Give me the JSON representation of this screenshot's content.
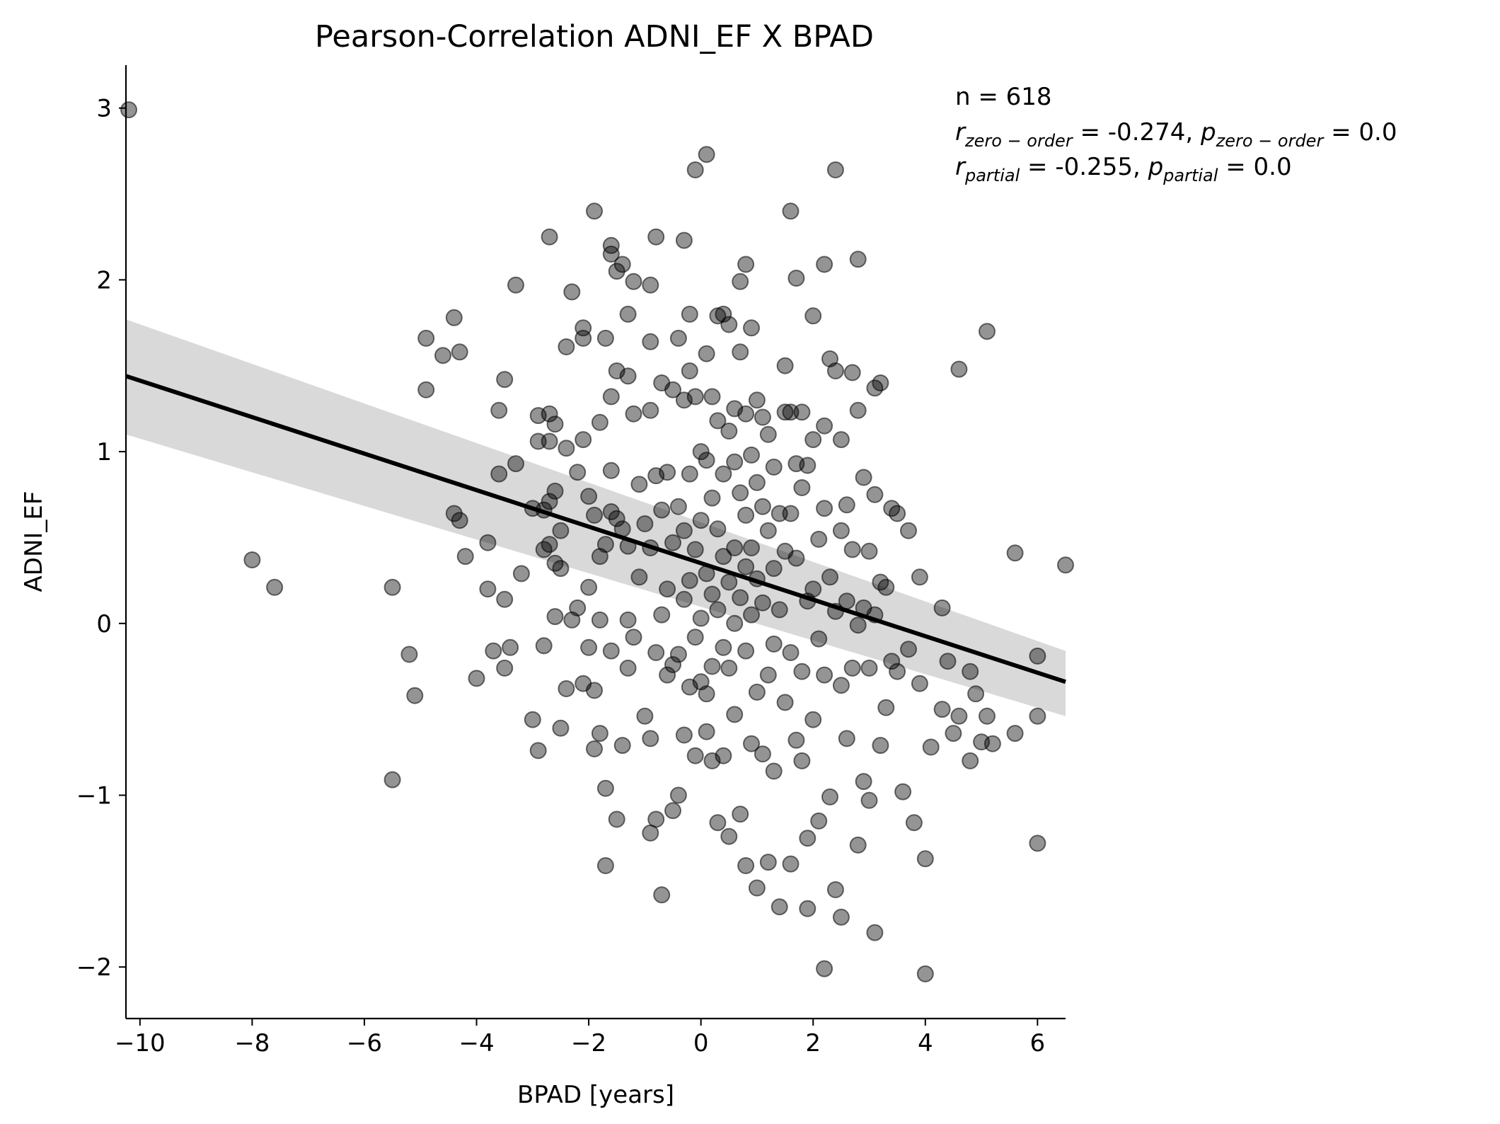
{
  "chart_data": {
    "type": "scatter",
    "title": "Pearson-Correlation ADNI_EF X BPAD",
    "xlabel": "BPAD [years]",
    "ylabel": "ADNI_EF",
    "xlim": [
      -10.25,
      6.5
    ],
    "ylim": [
      -2.3,
      3.25
    ],
    "xticks": [
      -10,
      -8,
      -6,
      -4,
      -2,
      0,
      2,
      4,
      6
    ],
    "xtick_labels": [
      "−10",
      "−8",
      "−6",
      "−4",
      "−2",
      "0",
      "2",
      "4",
      "6"
    ],
    "yticks": [
      -2,
      -1,
      0,
      1,
      2,
      3
    ],
    "ytick_labels": [
      "−2",
      "−1",
      "0",
      "1",
      "2",
      "3"
    ],
    "grid": false,
    "point_color": "#000000",
    "point_opacity": 0.42,
    "line_color": "#000000",
    "band_color": "#d9d9d9",
    "regression": {
      "x": [
        -10.25,
        6.5
      ],
      "y": [
        1.44,
        -0.34
      ],
      "ci_lower": [
        1.1,
        -0.54
      ],
      "ci_upper": [
        1.77,
        -0.16
      ]
    },
    "stats": {
      "n_label": "n = 618",
      "line2": {
        "r_symbol": "r",
        "r_sub": "zero − order",
        "r_value": " = -0.274, ",
        "p_symbol": "p",
        "p_sub": "zero − order",
        "p_value": " = 0.0"
      },
      "line3": {
        "r_symbol": "r",
        "r_sub": "partial",
        "r_value": " = -0.255, ",
        "p_symbol": "p",
        "p_sub": "partial",
        "p_value": " = 0.0"
      }
    },
    "points": [
      [
        -10.2,
        2.99
      ],
      [
        -8.0,
        0.37
      ],
      [
        -7.6,
        0.21
      ],
      [
        -5.5,
        0.21
      ],
      [
        -5.5,
        -0.91
      ],
      [
        -5.2,
        -0.18
      ],
      [
        -5.1,
        -0.42
      ],
      [
        -4.9,
        1.66
      ],
      [
        -4.9,
        1.36
      ],
      [
        -4.6,
        1.56
      ],
      [
        -4.4,
        1.78
      ],
      [
        -4.3,
        1.58
      ],
      [
        -4.4,
        0.64
      ],
      [
        -4.3,
        0.6
      ],
      [
        -4.2,
        0.39
      ],
      [
        -4.0,
        -0.32
      ],
      [
        -3.8,
        0.47
      ],
      [
        -3.8,
        0.2
      ],
      [
        -3.7,
        -0.16
      ],
      [
        -3.6,
        1.24
      ],
      [
        -3.6,
        0.87
      ],
      [
        -3.5,
        0.14
      ],
      [
        -3.5,
        -0.26
      ],
      [
        -3.5,
        1.42
      ],
      [
        -3.4,
        -0.14
      ],
      [
        -3.3,
        0.93
      ],
      [
        -3.3,
        1.97
      ],
      [
        -3.2,
        0.29
      ],
      [
        -3.0,
        0.67
      ],
      [
        -3.0,
        -0.56
      ],
      [
        -2.9,
        -0.74
      ],
      [
        -2.9,
        1.21
      ],
      [
        -2.9,
        1.06
      ],
      [
        -2.8,
        0.66
      ],
      [
        -2.8,
        0.43
      ],
      [
        -2.8,
        -0.13
      ],
      [
        -2.7,
        2.25
      ],
      [
        -2.7,
        1.22
      ],
      [
        -2.7,
        1.06
      ],
      [
        -2.7,
        0.71
      ],
      [
        -2.7,
        0.46
      ],
      [
        -2.6,
        1.16
      ],
      [
        -2.6,
        0.77
      ],
      [
        -2.6,
        0.35
      ],
      [
        -2.6,
        0.04
      ],
      [
        -2.5,
        0.32
      ],
      [
        -2.5,
        0.54
      ],
      [
        -2.5,
        -0.61
      ],
      [
        -2.4,
        1.61
      ],
      [
        -2.4,
        1.02
      ],
      [
        -2.4,
        -0.38
      ],
      [
        -2.3,
        0.02
      ],
      [
        -2.3,
        1.93
      ],
      [
        -2.2,
        0.88
      ],
      [
        -2.2,
        0.09
      ],
      [
        -2.1,
        1.72
      ],
      [
        -2.1,
        1.66
      ],
      [
        -2.1,
        1.07
      ],
      [
        -2.1,
        -0.35
      ],
      [
        -2.0,
        0.74
      ],
      [
        -2.0,
        0.21
      ],
      [
        -2.0,
        -0.14
      ],
      [
        -1.9,
        2.4
      ],
      [
        -1.9,
        0.63
      ],
      [
        -1.9,
        -0.39
      ],
      [
        -1.9,
        -0.73
      ],
      [
        -1.8,
        1.17
      ],
      [
        -1.8,
        0.39
      ],
      [
        -1.8,
        0.02
      ],
      [
        -1.8,
        -0.64
      ],
      [
        -1.7,
        -0.96
      ],
      [
        -1.7,
        -1.41
      ],
      [
        -1.7,
        0.46
      ],
      [
        -1.7,
        1.66
      ],
      [
        -1.6,
        2.2
      ],
      [
        -1.6,
        2.15
      ],
      [
        -1.6,
        1.32
      ],
      [
        -1.6,
        0.89
      ],
      [
        -1.6,
        0.65
      ],
      [
        -1.6,
        -0.16
      ],
      [
        -1.5,
        2.05
      ],
      [
        -1.5,
        1.47
      ],
      [
        -1.5,
        0.61
      ],
      [
        -1.5,
        -1.14
      ],
      [
        -1.4,
        2.09
      ],
      [
        -1.4,
        0.55
      ],
      [
        -1.4,
        -0.71
      ],
      [
        -1.3,
        1.8
      ],
      [
        -1.3,
        1.44
      ],
      [
        -1.3,
        0.45
      ],
      [
        -1.3,
        0.02
      ],
      [
        -1.3,
        -0.26
      ],
      [
        -1.2,
        1.99
      ],
      [
        -1.2,
        1.22
      ],
      [
        -1.2,
        -0.08
      ],
      [
        -1.1,
        0.81
      ],
      [
        -1.1,
        0.27
      ],
      [
        -1.0,
        0.58
      ],
      [
        -1.0,
        -0.54
      ],
      [
        -0.9,
        1.97
      ],
      [
        -0.9,
        1.64
      ],
      [
        -0.9,
        1.24
      ],
      [
        -0.9,
        0.44
      ],
      [
        -0.9,
        -0.67
      ],
      [
        -0.9,
        -1.22
      ],
      [
        -0.8,
        2.25
      ],
      [
        -0.8,
        0.86
      ],
      [
        -0.8,
        -0.17
      ],
      [
        -0.8,
        -1.14
      ],
      [
        -0.7,
        -1.58
      ],
      [
        -0.7,
        1.4
      ],
      [
        -0.7,
        0.66
      ],
      [
        -0.7,
        0.05
      ],
      [
        -0.6,
        0.2
      ],
      [
        -0.6,
        -0.3
      ],
      [
        -0.6,
        0.88
      ],
      [
        -0.5,
        1.36
      ],
      [
        -0.5,
        0.47
      ],
      [
        -0.5,
        -0.24
      ],
      [
        -0.5,
        -1.09
      ],
      [
        -0.4,
        1.66
      ],
      [
        -0.4,
        0.68
      ],
      [
        -0.4,
        -0.18
      ],
      [
        -0.4,
        -1.0
      ],
      [
        -0.3,
        2.23
      ],
      [
        -0.3,
        1.3
      ],
      [
        -0.3,
        0.54
      ],
      [
        -0.3,
        0.14
      ],
      [
        -0.3,
        -0.65
      ],
      [
        -0.2,
        1.8
      ],
      [
        -0.2,
        1.47
      ],
      [
        -0.2,
        0.87
      ],
      [
        -0.2,
        0.25
      ],
      [
        -0.2,
        -0.37
      ],
      [
        -0.1,
        2.64
      ],
      [
        -0.1,
        1.32
      ],
      [
        -0.1,
        0.43
      ],
      [
        -0.1,
        -0.08
      ],
      [
        -0.1,
        -0.77
      ],
      [
        0.0,
        1.0
      ],
      [
        0.0,
        0.6
      ],
      [
        0.0,
        0.03
      ],
      [
        0.0,
        -0.34
      ],
      [
        0.1,
        2.73
      ],
      [
        0.1,
        1.57
      ],
      [
        0.1,
        0.95
      ],
      [
        0.1,
        0.29
      ],
      [
        0.1,
        -0.41
      ],
      [
        0.1,
        -0.63
      ],
      [
        0.2,
        1.32
      ],
      [
        0.2,
        0.73
      ],
      [
        0.2,
        0.17
      ],
      [
        0.2,
        -0.25
      ],
      [
        0.2,
        -0.8
      ],
      [
        0.3,
        1.79
      ],
      [
        0.3,
        1.18
      ],
      [
        0.3,
        0.55
      ],
      [
        0.3,
        0.08
      ],
      [
        0.3,
        -1.16
      ],
      [
        0.4,
        1.8
      ],
      [
        0.4,
        0.87
      ],
      [
        0.4,
        0.39
      ],
      [
        0.4,
        -0.14
      ],
      [
        0.4,
        -0.77
      ],
      [
        0.5,
        1.74
      ],
      [
        0.5,
        1.12
      ],
      [
        0.5,
        0.24
      ],
      [
        0.5,
        -0.26
      ],
      [
        0.5,
        -1.24
      ],
      [
        0.6,
        1.25
      ],
      [
        0.6,
        0.94
      ],
      [
        0.6,
        0.44
      ],
      [
        0.6,
        0.0
      ],
      [
        0.6,
        -0.53
      ],
      [
        0.7,
        1.99
      ],
      [
        0.7,
        1.58
      ],
      [
        0.7,
        0.76
      ],
      [
        0.7,
        0.15
      ],
      [
        0.7,
        -1.11
      ],
      [
        0.8,
        2.09
      ],
      [
        0.8,
        1.22
      ],
      [
        0.8,
        0.63
      ],
      [
        0.8,
        0.33
      ],
      [
        0.8,
        -0.16
      ],
      [
        0.8,
        -1.41
      ],
      [
        0.9,
        1.72
      ],
      [
        0.9,
        0.98
      ],
      [
        0.9,
        0.44
      ],
      [
        0.9,
        0.05
      ],
      [
        0.9,
        -0.7
      ],
      [
        1.0,
        1.3
      ],
      [
        1.0,
        0.82
      ],
      [
        1.0,
        0.26
      ],
      [
        1.0,
        -0.4
      ],
      [
        1.0,
        -1.54
      ],
      [
        1.1,
        1.2
      ],
      [
        1.1,
        0.68
      ],
      [
        1.1,
        0.12
      ],
      [
        1.1,
        -0.76
      ],
      [
        1.2,
        1.1
      ],
      [
        1.2,
        0.54
      ],
      [
        1.2,
        -0.3
      ],
      [
        1.2,
        -1.39
      ],
      [
        1.3,
        0.91
      ],
      [
        1.3,
        0.32
      ],
      [
        1.3,
        -0.12
      ],
      [
        1.3,
        -0.86
      ],
      [
        1.4,
        0.64
      ],
      [
        1.4,
        0.08
      ],
      [
        1.4,
        -1.65
      ],
      [
        1.5,
        1.5
      ],
      [
        1.5,
        1.23
      ],
      [
        1.5,
        0.42
      ],
      [
        1.5,
        -0.46
      ],
      [
        1.6,
        2.4
      ],
      [
        1.6,
        1.23
      ],
      [
        1.6,
        0.64
      ],
      [
        1.6,
        -0.17
      ],
      [
        1.6,
        -1.4
      ],
      [
        1.7,
        2.01
      ],
      [
        1.7,
        0.93
      ],
      [
        1.7,
        0.38
      ],
      [
        1.7,
        -0.68
      ],
      [
        1.8,
        1.23
      ],
      [
        1.8,
        0.79
      ],
      [
        1.8,
        -0.28
      ],
      [
        1.8,
        -0.8
      ],
      [
        1.9,
        0.92
      ],
      [
        1.9,
        0.13
      ],
      [
        1.9,
        -1.25
      ],
      [
        1.9,
        -1.66
      ],
      [
        2.0,
        1.79
      ],
      [
        2.0,
        1.07
      ],
      [
        2.0,
        0.2
      ],
      [
        2.0,
        -0.56
      ],
      [
        2.1,
        0.49
      ],
      [
        2.1,
        -0.09
      ],
      [
        2.1,
        -1.15
      ],
      [
        2.2,
        2.09
      ],
      [
        2.2,
        1.15
      ],
      [
        2.2,
        0.67
      ],
      [
        2.2,
        -0.3
      ],
      [
        2.2,
        -2.01
      ],
      [
        2.3,
        1.54
      ],
      [
        2.3,
        0.27
      ],
      [
        2.3,
        -1.01
      ],
      [
        2.4,
        2.64
      ],
      [
        2.4,
        1.47
      ],
      [
        2.4,
        0.07
      ],
      [
        2.4,
        -1.55
      ],
      [
        2.5,
        1.07
      ],
      [
        2.5,
        0.54
      ],
      [
        2.5,
        -0.36
      ],
      [
        2.5,
        -1.71
      ],
      [
        2.6,
        0.69
      ],
      [
        2.6,
        0.13
      ],
      [
        2.6,
        -0.67
      ],
      [
        2.7,
        1.46
      ],
      [
        2.7,
        0.43
      ],
      [
        2.7,
        -0.26
      ],
      [
        2.8,
        2.12
      ],
      [
        2.8,
        1.24
      ],
      [
        2.8,
        -0.01
      ],
      [
        2.8,
        -1.29
      ],
      [
        2.9,
        0.85
      ],
      [
        2.9,
        0.09
      ],
      [
        2.9,
        -0.92
      ],
      [
        3.0,
        0.42
      ],
      [
        3.0,
        -0.26
      ],
      [
        3.0,
        -1.03
      ],
      [
        3.1,
        1.37
      ],
      [
        3.1,
        0.75
      ],
      [
        3.1,
        0.05
      ],
      [
        3.1,
        -1.8
      ],
      [
        3.2,
        1.4
      ],
      [
        3.2,
        0.24
      ],
      [
        3.2,
        -0.71
      ],
      [
        3.3,
        0.21
      ],
      [
        3.3,
        -0.49
      ],
      [
        3.4,
        0.67
      ],
      [
        3.4,
        -0.22
      ],
      [
        3.5,
        0.64
      ],
      [
        3.5,
        -0.28
      ],
      [
        3.6,
        -0.98
      ],
      [
        3.7,
        0.54
      ],
      [
        3.7,
        -0.15
      ],
      [
        3.8,
        -1.16
      ],
      [
        3.9,
        0.27
      ],
      [
        3.9,
        -0.35
      ],
      [
        4.0,
        -1.37
      ],
      [
        4.0,
        -2.04
      ],
      [
        4.1,
        -0.72
      ],
      [
        4.3,
        0.09
      ],
      [
        4.3,
        -0.5
      ],
      [
        4.4,
        -0.22
      ],
      [
        4.5,
        -0.64
      ],
      [
        4.6,
        1.48
      ],
      [
        4.6,
        -0.54
      ],
      [
        4.8,
        -0.28
      ],
      [
        4.8,
        -0.8
      ],
      [
        4.9,
        -0.41
      ],
      [
        5.0,
        -0.69
      ],
      [
        5.1,
        1.7
      ],
      [
        5.1,
        -0.54
      ],
      [
        5.2,
        -0.7
      ],
      [
        5.6,
        0.41
      ],
      [
        5.6,
        -0.64
      ],
      [
        6.0,
        -0.19
      ],
      [
        6.0,
        -0.54
      ],
      [
        6.0,
        -1.28
      ],
      [
        6.5,
        0.34
      ]
    ]
  }
}
